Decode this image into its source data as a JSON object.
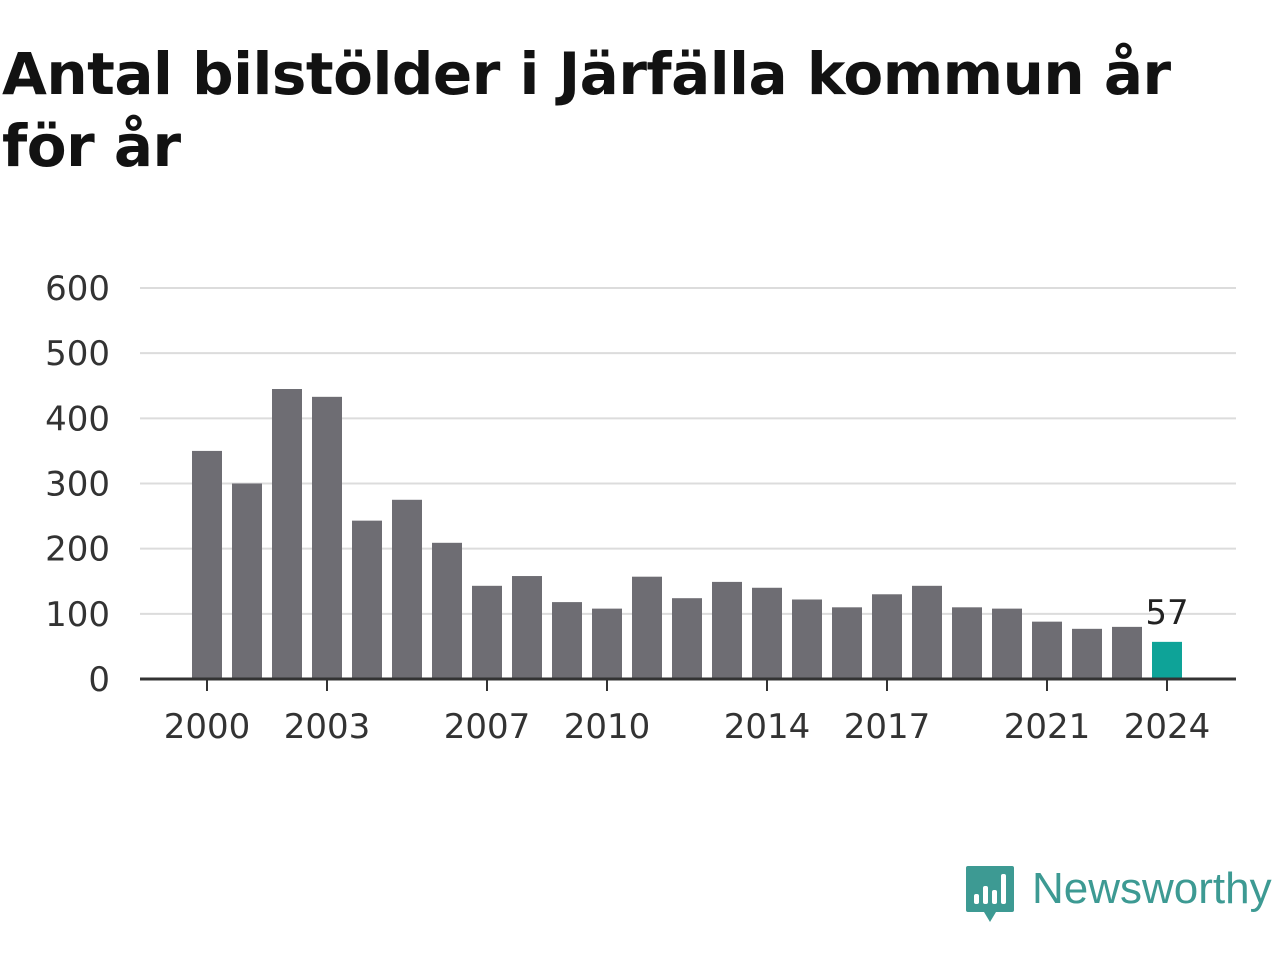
{
  "title": "Antal bilstölder i Järfälla kommun år för år",
  "brand": {
    "name": "Newsworthy",
    "logo_icon": "newsworthy-logo-icon",
    "color": "#3d9a93"
  },
  "colors": {
    "bar": "#6e6d73",
    "highlight": "#0ea398",
    "grid": "#dcdcdc",
    "axis": "#333333",
    "tick_label": "#333333"
  },
  "chart_data": {
    "type": "bar",
    "title": "Antal bilstölder i Järfälla kommun år för år",
    "xlabel": "",
    "ylabel": "",
    "categories": [
      "2000",
      "2001",
      "2002",
      "2003",
      "2004",
      "2005",
      "2006",
      "2007",
      "2008",
      "2009",
      "2010",
      "2011",
      "2012",
      "2013",
      "2014",
      "2015",
      "2016",
      "2017",
      "2018",
      "2019",
      "2020",
      "2021",
      "2022",
      "2023",
      "2024"
    ],
    "values": [
      350,
      300,
      445,
      433,
      243,
      275,
      209,
      143,
      158,
      118,
      108,
      157,
      124,
      149,
      140,
      122,
      110,
      130,
      143,
      110,
      108,
      88,
      77,
      80,
      57
    ],
    "highlight_index": 24,
    "highlight_label": "57",
    "x_tick_labels": [
      "2000",
      "2003",
      "2007",
      "2010",
      "2014",
      "2017",
      "2021",
      "2024"
    ],
    "y_ticks": [
      0,
      100,
      200,
      300,
      400,
      500,
      600
    ],
    "ylim": [
      0,
      600
    ],
    "grid": true,
    "legend": "none"
  }
}
